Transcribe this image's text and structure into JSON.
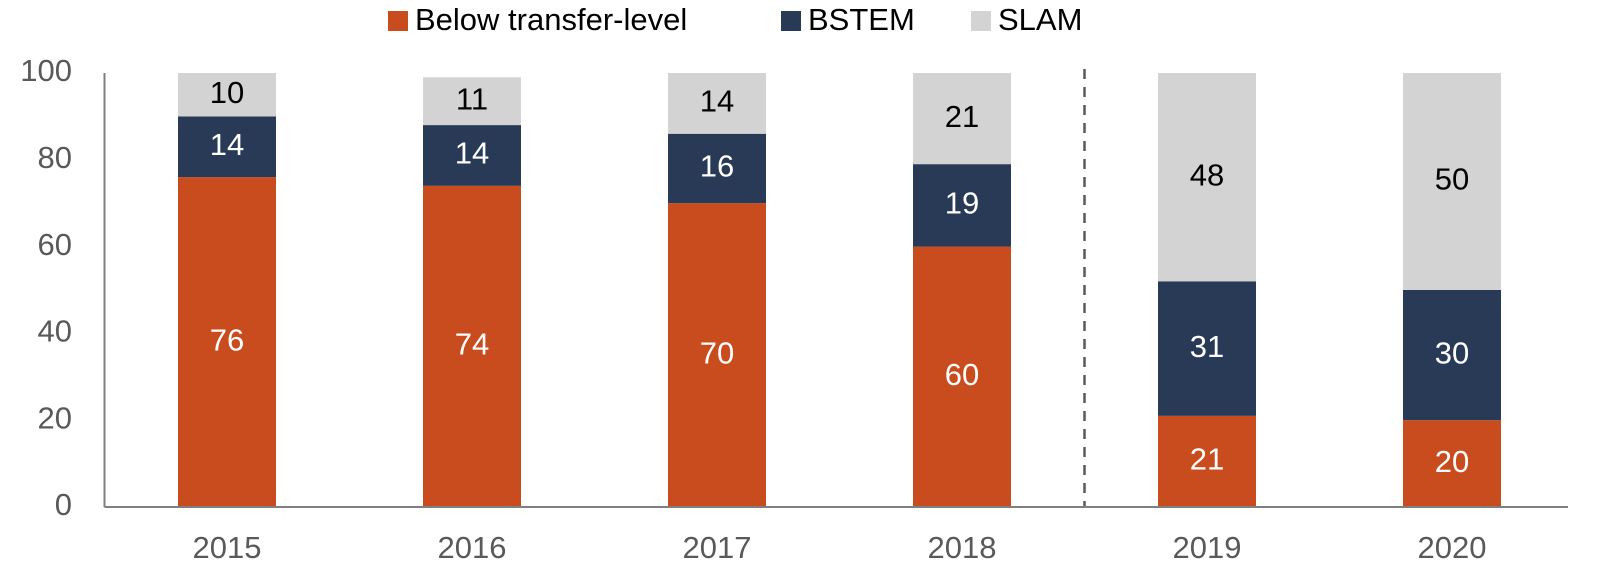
{
  "chart_data": {
    "type": "stacked_bar",
    "categories": [
      "2015",
      "2016",
      "2017",
      "2018",
      "2019",
      "2020"
    ],
    "series": [
      {
        "name": "Below transfer-level",
        "color": "#c94c1e",
        "values": [
          76,
          74,
          70,
          60,
          21,
          20
        ]
      },
      {
        "name": "BSTEM",
        "color": "#283a55",
        "values": [
          14,
          14,
          16,
          19,
          31,
          30
        ]
      },
      {
        "name": "SLAM",
        "color": "#d3d3d3",
        "values": [
          10,
          11,
          14,
          21,
          48,
          50
        ]
      }
    ],
    "ylim": [
      0,
      100
    ],
    "yticks": [
      0,
      20,
      40,
      60,
      80,
      100
    ],
    "legend": "top"
  }
}
